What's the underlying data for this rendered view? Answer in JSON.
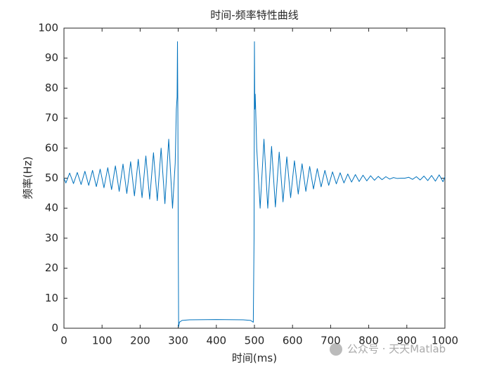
{
  "chart_data": {
    "type": "line",
    "title": "时间-频率特性曲线",
    "x_label": "时间(ms)",
    "y_label": "频率(Hz)",
    "xlim": [
      0,
      1000
    ],
    "ylim": [
      0,
      100
    ],
    "xticks": [
      0,
      100,
      200,
      300,
      400,
      500,
      600,
      700,
      800,
      900,
      1000
    ],
    "yticks": [
      0,
      10,
      20,
      30,
      40,
      50,
      60,
      70,
      80,
      90,
      100
    ],
    "grid": false,
    "x": [
      0,
      5,
      15,
      25,
      35,
      45,
      55,
      65,
      75,
      85,
      95,
      105,
      115,
      125,
      135,
      145,
      155,
      165,
      175,
      185,
      195,
      205,
      215,
      225,
      235,
      245,
      255,
      265,
      275,
      285,
      292,
      295,
      297,
      298,
      299,
      300,
      301,
      303,
      310,
      330,
      400,
      470,
      490,
      497,
      499,
      500,
      501,
      502,
      503,
      506,
      515,
      525,
      535,
      545,
      555,
      565,
      575,
      585,
      595,
      605,
      615,
      625,
      635,
      645,
      655,
      665,
      675,
      685,
      695,
      705,
      715,
      725,
      735,
      745,
      755,
      765,
      775,
      785,
      795,
      805,
      815,
      825,
      835,
      845,
      855,
      865,
      875,
      885,
      895,
      905,
      915,
      925,
      935,
      945,
      955,
      965,
      975,
      985,
      995,
      1000
    ],
    "series": [
      {
        "color": "#0072bd",
        "values": [
          50,
          48.4,
          51.7,
          48.2,
          51.9,
          47.9,
          52.3,
          47.6,
          52.6,
          47.2,
          53.0,
          46.8,
          53.5,
          46.2,
          54.1,
          45.6,
          54.7,
          44.9,
          55.5,
          44.1,
          56.3,
          43.5,
          57.4,
          43,
          58.5,
          42.5,
          60,
          41.5,
          63,
          40,
          55,
          73,
          77,
          95.5,
          72,
          30,
          0.5,
          2,
          2.6,
          2.8,
          2.9,
          2.8,
          2.6,
          2,
          30,
          95.5,
          73,
          78,
          74,
          60,
          40,
          63,
          40,
          60.6,
          40.4,
          58.7,
          42.1,
          57.1,
          43.5,
          55.8,
          44.7,
          54.8,
          45.6,
          53.9,
          46.4,
          53.2,
          47.1,
          52.6,
          47.6,
          52.1,
          48.1,
          51.8,
          48.4,
          51.4,
          48.7,
          51.2,
          48.9,
          51,
          49.1,
          50.8,
          49.3,
          50.6,
          49.5,
          50.5,
          49.7,
          50.2,
          49.9,
          50,
          50,
          50.3,
          49.6,
          50.5,
          49.4,
          50.7,
          49.2,
          50.9,
          49,
          51.1,
          48.8,
          50.5
        ]
      }
    ],
    "watermark": "公众号 · 天天Matlab"
  }
}
